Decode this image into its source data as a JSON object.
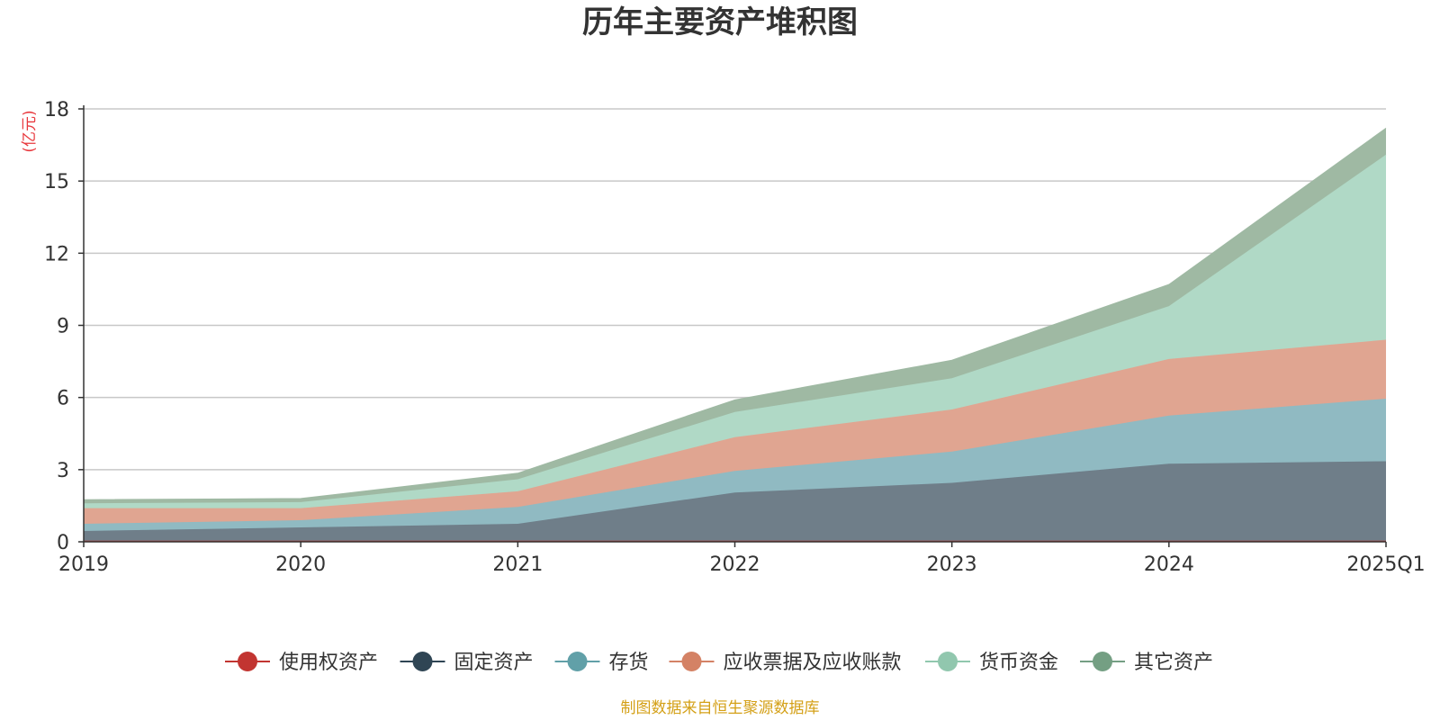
{
  "chart_data": {
    "type": "area",
    "stacked": true,
    "title": "历年主要资产堆积图",
    "unit_label": "(亿元)",
    "categories": [
      "2019",
      "2020",
      "2021",
      "2022",
      "2023",
      "2024",
      "2025Q1"
    ],
    "y_ticks": [
      "0",
      "3",
      "6",
      "9",
      "12",
      "15",
      "18"
    ],
    "ylim": [
      0,
      18
    ],
    "grid": true,
    "legend_position": "bottom",
    "series": [
      {
        "name": "使用权资产",
        "color": "#c23531",
        "fill": "#c23531",
        "values": [
          0.05,
          0.05,
          0.05,
          0.05,
          0.05,
          0.05,
          0.05
        ]
      },
      {
        "name": "固定资产",
        "color": "#2f4554",
        "fill": "#6f7e89",
        "values": [
          0.4,
          0.55,
          0.7,
          2.0,
          2.4,
          3.2,
          3.3
        ]
      },
      {
        "name": "存货",
        "color": "#61a0a8",
        "fill": "#90bac2",
        "values": [
          0.3,
          0.3,
          0.7,
          0.9,
          1.3,
          2.0,
          2.6
        ]
      },
      {
        "name": "应收票据及应收账款",
        "color": "#d48265",
        "fill": "#e0a591",
        "values": [
          0.65,
          0.5,
          0.65,
          1.4,
          1.75,
          2.35,
          2.45
        ]
      },
      {
        "name": "货币资金",
        "color": "#91c7ae",
        "fill": "#b0d9c6",
        "values": [
          0.2,
          0.25,
          0.5,
          1.05,
          1.3,
          2.2,
          7.7
        ]
      },
      {
        "name": "其它资产",
        "color": "#749f83",
        "fill": "#9fb9a3",
        "values": [
          0.15,
          0.15,
          0.25,
          0.5,
          0.75,
          0.9,
          1.1
        ]
      }
    ]
  },
  "source_note": "制图数据来自恒生聚源数据库",
  "colors": {
    "unit_label": "#e8383d",
    "source_note": "#d4a017",
    "grid": "#c8c8c8",
    "axis": "#333333"
  }
}
